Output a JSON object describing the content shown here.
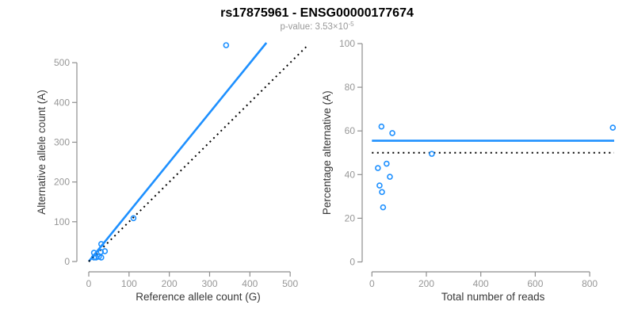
{
  "header": {
    "title": "rs17875961 - ENSG00000177674",
    "p_value_prefix": "p-value: 3.53×10",
    "p_value_exponent": "-5"
  },
  "colors": {
    "accent_blue": "#1E90FF",
    "dotted_black": "#000000",
    "tick_label_gray": "#979797",
    "axis_line_gray": "#8e8e8e",
    "axis_title_dark": "#383838",
    "subtitle_gray": "#999999",
    "title_black": "#000000"
  },
  "chart_data": [
    {
      "type": "scatter",
      "name": "allele-counts-plot",
      "xlabel": "Reference allele count (G)",
      "ylabel": "Alternative allele count (A)",
      "xlim": [
        0,
        543
      ],
      "ylim": [
        0,
        550
      ],
      "xticks": [
        0,
        100,
        200,
        300,
        400,
        500
      ],
      "yticks": [
        0,
        100,
        200,
        300,
        400,
        500
      ],
      "grid": false,
      "legend": null,
      "marker": "open-circle",
      "points": [
        {
          "x": 13,
          "y": 22
        },
        {
          "x": 31,
          "y": 44
        },
        {
          "x": 111,
          "y": 109
        },
        {
          "x": 13,
          "y": 10
        },
        {
          "x": 30,
          "y": 24
        },
        {
          "x": 40,
          "y": 26
        },
        {
          "x": 18,
          "y": 10
        },
        {
          "x": 25,
          "y": 12
        },
        {
          "x": 31,
          "y": 10
        },
        {
          "x": 341,
          "y": 544
        }
      ],
      "lines": [
        {
          "name": "fitted-ratio-line",
          "style": "solid",
          "color": "blue",
          "x1": 0,
          "y1": 0,
          "x2": 441,
          "y2": 550
        },
        {
          "name": "identity-line",
          "style": "dotted",
          "color": "black",
          "x1": 0,
          "y1": 0,
          "x2": 543,
          "y2": 543
        }
      ]
    },
    {
      "type": "scatter",
      "name": "percentage-vs-reads-plot",
      "xlabel": "Total number of reads",
      "ylabel": "Percentage alternative (A)",
      "xlim": [
        0,
        890
      ],
      "ylim": [
        0,
        100
      ],
      "xticks": [
        0,
        200,
        400,
        600,
        800
      ],
      "yticks": [
        0,
        20,
        40,
        60,
        80,
        100
      ],
      "grid": false,
      "legend": null,
      "marker": "open-circle",
      "points": [
        {
          "x": 35,
          "y": 62
        },
        {
          "x": 75,
          "y": 59
        },
        {
          "x": 220,
          "y": 49.5
        },
        {
          "x": 22,
          "y": 43
        },
        {
          "x": 54,
          "y": 45
        },
        {
          "x": 66,
          "y": 39
        },
        {
          "x": 28,
          "y": 35
        },
        {
          "x": 37,
          "y": 32
        },
        {
          "x": 41,
          "y": 25
        },
        {
          "x": 885,
          "y": 61.5
        }
      ],
      "lines": [
        {
          "name": "mean-percentage-line",
          "style": "solid",
          "color": "blue",
          "x1": 0,
          "y1": 55.5,
          "x2": 890,
          "y2": 55.5
        },
        {
          "name": "fifty-percent-line",
          "style": "dotted",
          "color": "black",
          "x1": 0,
          "y1": 50,
          "x2": 890,
          "y2": 50
        }
      ]
    }
  ]
}
